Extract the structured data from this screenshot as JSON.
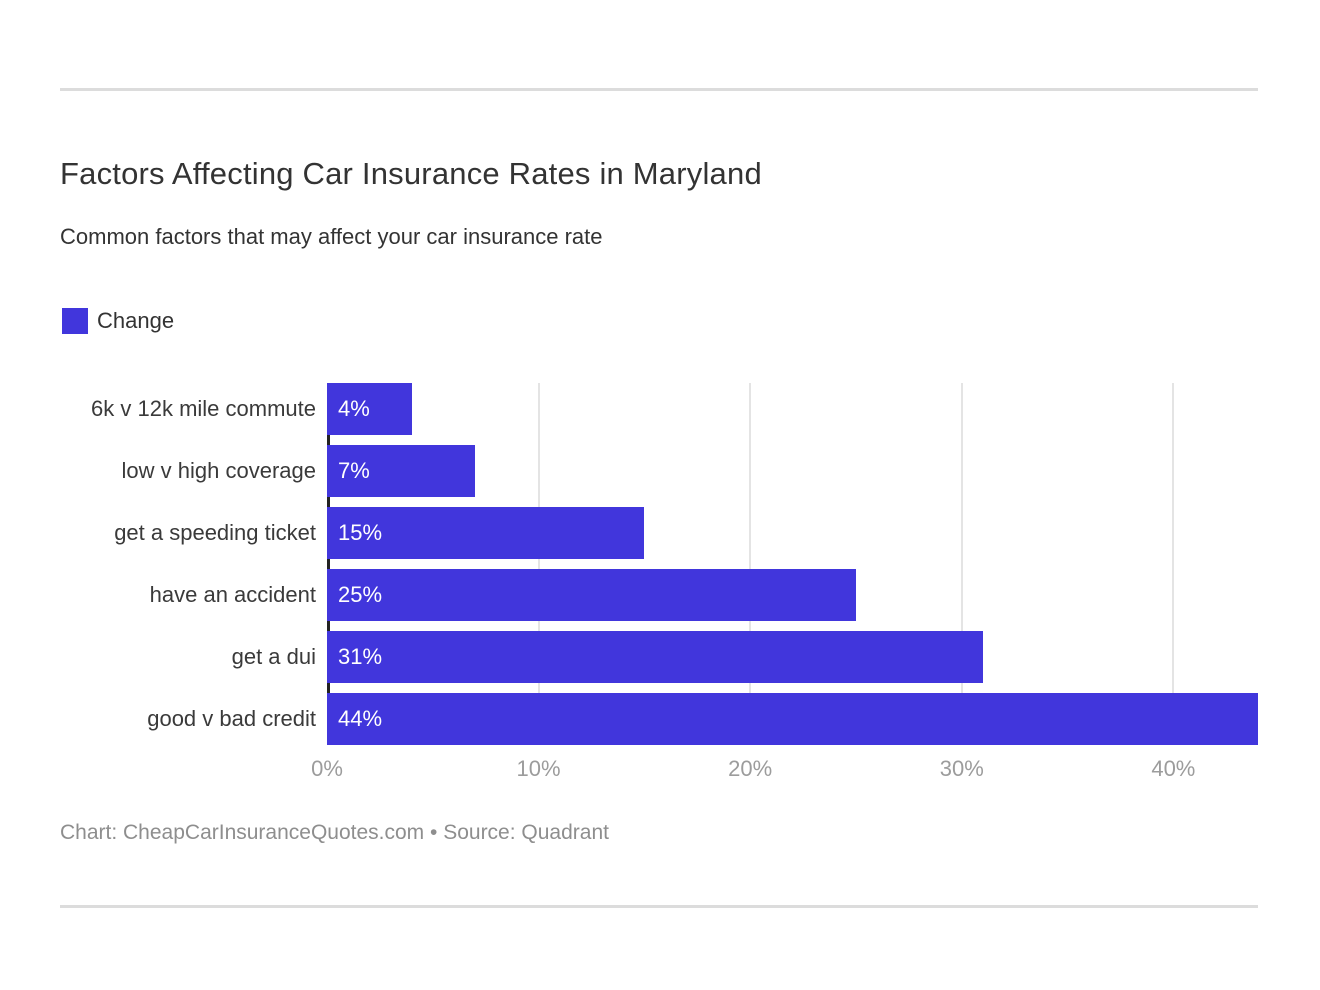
{
  "header": {
    "title": "Factors Affecting Car Insurance Rates in Maryland",
    "subtitle": "Common factors that may affect your car insurance rate"
  },
  "legend": {
    "label": "Change"
  },
  "chart_data": {
    "type": "bar",
    "orientation": "horizontal",
    "title": "Factors Affecting Car Insurance Rates in Maryland",
    "subtitle": "Common factors that may affect your car insurance rate",
    "series_name": "Change",
    "categories": [
      "6k v 12k mile commute",
      "low v high coverage",
      "get a speeding ticket",
      "have an accident",
      "get a dui",
      "good v bad credit"
    ],
    "values": [
      4,
      7,
      15,
      25,
      31,
      44
    ],
    "value_labels": [
      "4%",
      "7%",
      "15%",
      "25%",
      "31%",
      "44%"
    ],
    "xlabel": "",
    "ylabel": "",
    "xlim": [
      0,
      44
    ],
    "ticks": [
      {
        "value": 0,
        "label": "0%"
      },
      {
        "value": 10,
        "label": "10%"
      },
      {
        "value": 20,
        "label": "20%"
      },
      {
        "value": 30,
        "label": "30%"
      },
      {
        "value": 40,
        "label": "40%"
      }
    ],
    "grid": true,
    "legend_position": "top-left",
    "bar_color": "#4136dc",
    "axis_color": "#222222",
    "gridline_color": "#e4e4e4",
    "value_label_color": "#ffffff",
    "tick_label_color": "#9c9c9c"
  },
  "footer": {
    "text": "Chart: CheapCarInsuranceQuotes.com • Source: Quadrant"
  }
}
